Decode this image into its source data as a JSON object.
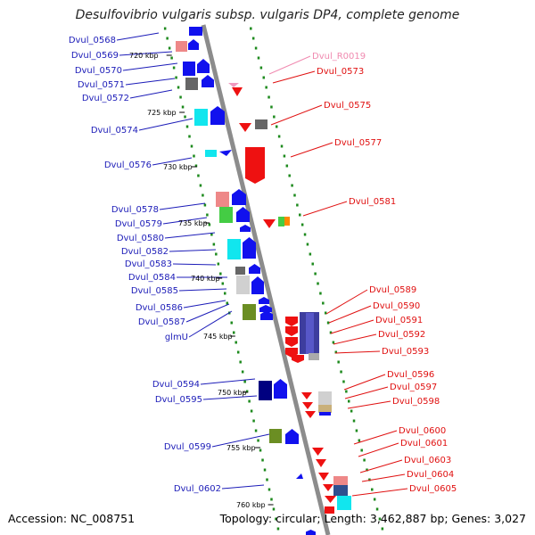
{
  "title": "Desulfovibrio vulgaris subsp. vulgaris DP4, complete genome",
  "footer": {
    "accession": "Accession: NC_008751",
    "summary": "Topology: circular; Length: 3,462,887 bp; Genes: 3,027"
  },
  "colors": {
    "backbone": "#8c8c8c",
    "dots": "#1d8a1d",
    "left_label": "#1c1cb8",
    "right_label": "#e01010",
    "rna_label": "#f08ab0"
  },
  "kbp_ticks": [
    "720 kbp",
    "725 kbp",
    "730 kbp",
    "735 kbp",
    "740 kbp",
    "745 kbp",
    "750 kbp",
    "755 kbp",
    "760 kbp"
  ],
  "left_genes": [
    "Dvul_0568",
    "Dvul_0569",
    "Dvul_0570",
    "Dvul_0571",
    "Dvul_0572",
    "Dvul_0574",
    "Dvul_0576",
    "Dvul_0578",
    "Dvul_0579",
    "Dvul_0580",
    "Dvul_0582",
    "Dvul_0583",
    "Dvul_0584",
    "Dvul_0585",
    "Dvul_0586",
    "Dvul_0587",
    "glmU",
    "Dvul_0594",
    "Dvul_0595",
    "Dvul_0599",
    "Dvul_0602"
  ],
  "right_genes": [
    "Dvul_R0019",
    "Dvul_0573",
    "Dvul_0575",
    "Dvul_0577",
    "Dvul_0581",
    "Dvul_0589",
    "Dvul_0590",
    "Dvul_0591",
    "Dvul_0592",
    "Dvul_0593",
    "Dvul_0596",
    "Dvul_0597",
    "Dvul_0598",
    "Dvul_0600",
    "Dvul_0601",
    "Dvul_0603",
    "Dvul_0604",
    "Dvul_0605"
  ]
}
